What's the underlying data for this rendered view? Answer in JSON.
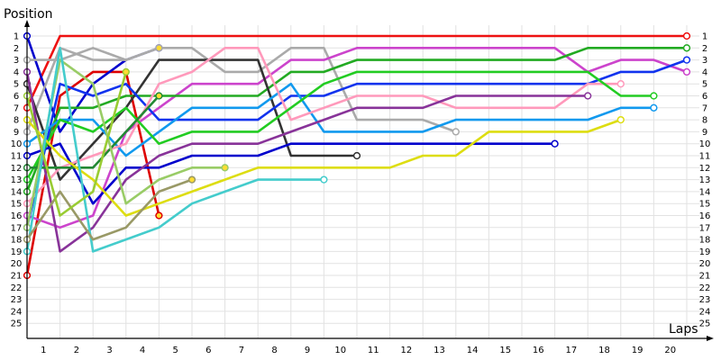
{
  "chart_data": {
    "type": "line",
    "title": "",
    "ylabel": "Position",
    "xlabel": "Laps",
    "x_ticks": [
      "1",
      "2",
      "3",
      "4",
      "5",
      "6",
      "7",
      "8",
      "9",
      "10",
      "11",
      "12",
      "13",
      "14",
      "15",
      "16",
      "17",
      "18",
      "19",
      "20"
    ],
    "y_ticks": [
      "1",
      "2",
      "3",
      "4",
      "5",
      "6",
      "7",
      "8",
      "9",
      "10",
      "11",
      "12",
      "13",
      "14",
      "15",
      "16",
      "17",
      "18",
      "19",
      "20",
      "21",
      "22",
      "23",
      "24",
      "25"
    ],
    "xlim": [
      0,
      20.7
    ],
    "ylim": [
      25,
      1
    ],
    "grid": true,
    "y_inverted": true,
    "series": [
      {
        "color": "#dd0000",
        "positions": [
          21,
          6,
          4,
          4,
          16
        ]
      },
      {
        "color": "#ee1111",
        "positions": [
          7,
          1,
          1,
          1,
          1,
          1,
          1,
          1,
          1,
          1,
          1,
          1,
          1,
          1,
          1,
          1,
          1,
          1,
          1,
          1,
          1
        ]
      },
      {
        "color": "#0000cc",
        "positions": [
          1,
          9,
          5,
          3,
          2
        ]
      },
      {
        "color": "#aaaaaa",
        "positions": [
          3,
          3,
          2,
          3,
          2,
          2,
          4,
          4,
          2,
          2,
          8,
          8,
          8,
          9
        ]
      },
      {
        "color": "#aaaaaa",
        "positions": [
          9,
          2,
          3,
          3,
          2
        ]
      },
      {
        "color": "#cc44cc",
        "positions": [
          16,
          17,
          16,
          9,
          7,
          5,
          5,
          5,
          3,
          3,
          2,
          2,
          2,
          2,
          2,
          2,
          2,
          4,
          3,
          3,
          4
        ]
      },
      {
        "color": "#22aa22",
        "positions": [
          14,
          7,
          7,
          6,
          6,
          6,
          6,
          6,
          4,
          4,
          3,
          3,
          3,
          3,
          3,
          3,
          3,
          2,
          2,
          2,
          2
        ]
      },
      {
        "color": "#333333",
        "positions": [
          5,
          13,
          10,
          7,
          3,
          3,
          3,
          3,
          11,
          11,
          11
        ]
      },
      {
        "color": "#0000cc",
        "positions": [
          11,
          10,
          15,
          12,
          12,
          11,
          11,
          11,
          10,
          10,
          10,
          10,
          10,
          10,
          10,
          10,
          10
        ]
      },
      {
        "color": "#1133ee",
        "positions": [
          17,
          5,
          6,
          5,
          8,
          8,
          8,
          8,
          6,
          6,
          5,
          5,
          5,
          5,
          5,
          5,
          5,
          5,
          4,
          4,
          3
        ]
      },
      {
        "color": "#1199ee",
        "positions": [
          10,
          8,
          8,
          11,
          9,
          7,
          7,
          7,
          5,
          9,
          9,
          9,
          9,
          8,
          8,
          8,
          8,
          8,
          7,
          7
        ]
      },
      {
        "color": "#ff99bb",
        "positions": [
          15,
          12,
          11,
          10,
          5,
          4,
          2,
          2,
          8,
          7,
          6,
          6,
          6,
          7,
          7,
          7,
          7,
          5,
          5
        ]
      },
      {
        "color": "#883399",
        "positions": [
          4,
          19,
          17,
          13,
          11,
          10,
          10,
          10,
          9,
          8,
          7,
          7,
          7,
          6,
          6,
          6,
          6,
          6
        ]
      },
      {
        "color": "#22cc22",
        "positions": [
          13,
          8,
          9,
          7,
          10,
          9,
          9,
          9,
          7,
          5,
          4,
          4,
          4,
          4,
          4,
          4,
          4,
          4,
          6,
          6
        ]
      },
      {
        "color": "#228833",
        "positions": [
          12,
          12,
          12,
          9,
          6
        ]
      },
      {
        "color": "#99cc66",
        "positions": [
          17,
          3,
          5,
          15,
          13,
          12,
          12
        ]
      },
      {
        "color": "#dddd11",
        "positions": [
          8,
          11,
          13,
          16,
          15,
          14,
          13,
          12,
          12,
          12,
          12,
          12,
          11,
          11,
          9,
          9,
          9,
          9,
          8
        ]
      },
      {
        "color": "#44cccc",
        "positions": [
          19,
          2,
          19,
          18,
          17,
          15,
          14,
          13,
          13,
          13
        ]
      },
      {
        "color": "#999966",
        "positions": [
          18,
          14,
          18,
          17,
          14,
          13
        ]
      },
      {
        "color": "#99cc33",
        "positions": [
          6,
          16,
          14,
          4
        ]
      }
    ]
  }
}
